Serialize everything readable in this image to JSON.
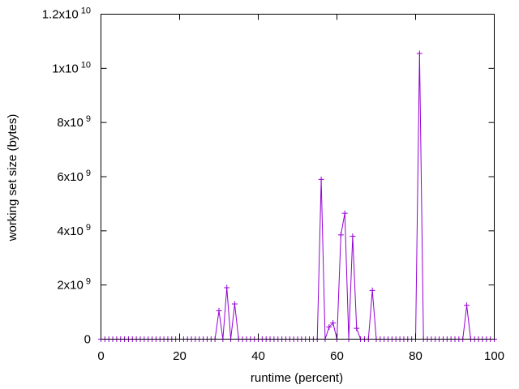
{
  "chart_data": {
    "type": "line",
    "title": "",
    "xlabel": "runtime (percent)",
    "ylabel": "working set size (bytes)",
    "xlim": [
      0,
      100
    ],
    "ylim": [
      0,
      12000000000
    ],
    "grid": false,
    "legend": "none",
    "x_ticks": [
      {
        "value": 0,
        "label": "0"
      },
      {
        "value": 20,
        "label": "20"
      },
      {
        "value": 40,
        "label": "40"
      },
      {
        "value": 60,
        "label": "60"
      },
      {
        "value": 80,
        "label": "80"
      },
      {
        "value": 100,
        "label": "100"
      }
    ],
    "y_ticks": [
      {
        "value": 0,
        "label": "0",
        "exp": ""
      },
      {
        "value": 2000000000,
        "label": "2x10",
        "exp": "9"
      },
      {
        "value": 4000000000,
        "label": "4x10",
        "exp": "9"
      },
      {
        "value": 6000000000,
        "label": "6x10",
        "exp": "9"
      },
      {
        "value": 8000000000,
        "label": "8x10",
        "exp": "9"
      },
      {
        "value": 10000000000,
        "label": "1x10",
        "exp": "10"
      },
      {
        "value": 12000000000,
        "label": "1.2x10",
        "exp": "10"
      }
    ],
    "series": [
      {
        "color": "#9400d3",
        "marker": "+",
        "x": [
          0,
          1,
          2,
          3,
          4,
          5,
          6,
          7,
          8,
          9,
          10,
          11,
          12,
          13,
          14,
          15,
          16,
          17,
          18,
          19,
          20,
          21,
          22,
          23,
          24,
          25,
          26,
          27,
          28,
          29,
          30,
          31,
          32,
          33,
          34,
          35,
          36,
          37,
          38,
          39,
          40,
          41,
          42,
          43,
          44,
          45,
          46,
          47,
          48,
          49,
          50,
          51,
          52,
          53,
          54,
          55,
          56,
          57,
          58,
          59,
          60,
          61,
          62,
          63,
          64,
          65,
          66,
          67,
          68,
          69,
          70,
          71,
          72,
          73,
          74,
          75,
          76,
          77,
          78,
          79,
          80,
          81,
          82,
          83,
          84,
          85,
          86,
          87,
          88,
          89,
          90,
          91,
          92,
          93,
          94,
          95,
          96,
          97,
          98,
          99,
          100
        ],
        "y": [
          0,
          0,
          0,
          0,
          0,
          0,
          0,
          0,
          0,
          0,
          0,
          0,
          0,
          0,
          0,
          0,
          0,
          0,
          0,
          0,
          0,
          0,
          0,
          0,
          0,
          0,
          0,
          0,
          0,
          0,
          1050000000,
          0,
          1900000000,
          0,
          1300000000,
          0,
          0,
          0,
          0,
          0,
          0,
          0,
          0,
          0,
          0,
          0,
          0,
          0,
          0,
          0,
          0,
          0,
          0,
          0,
          0,
          0,
          5900000000,
          0,
          450000000,
          600000000,
          0,
          3850000000,
          4650000000,
          0,
          3800000000,
          400000000,
          0,
          0,
          0,
          1800000000,
          0,
          0,
          0,
          0,
          0,
          0,
          0,
          0,
          0,
          0,
          0,
          10550000000,
          0,
          0,
          0,
          0,
          0,
          0,
          0,
          0,
          0,
          0,
          0,
          1250000000,
          0,
          0,
          0,
          0,
          0,
          0,
          0
        ]
      }
    ]
  }
}
